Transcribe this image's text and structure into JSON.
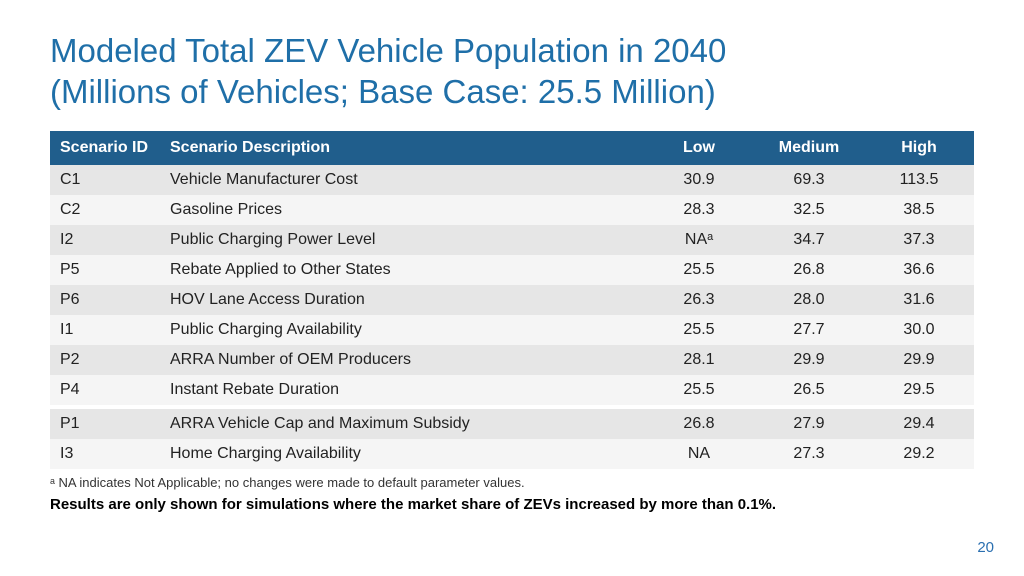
{
  "title_line1": "Modeled Total ZEV Vehicle Population in 2040",
  "title_line2": "(Millions of Vehicles; Base Case: 25.5 Million)",
  "columns": {
    "id": "Scenario ID",
    "desc": "Scenario Description",
    "low": "Low",
    "med": "Medium",
    "high": "High"
  },
  "rows": [
    {
      "id": "C1",
      "desc": "Vehicle Manufacturer Cost",
      "low": "30.9",
      "med": "69.3",
      "high": "113.5"
    },
    {
      "id": "C2",
      "desc": "Gasoline Prices",
      "low": "28.3",
      "med": "32.5",
      "high": "38.5"
    },
    {
      "id": "I2",
      "desc": "Public Charging Power Level",
      "low": "NAᵃ",
      "med": "34.7",
      "high": "37.3"
    },
    {
      "id": "P5",
      "desc": "Rebate Applied to Other States",
      "low": "25.5",
      "med": "26.8",
      "high": "36.6"
    },
    {
      "id": "P6",
      "desc": "HOV Lane Access Duration",
      "low": "26.3",
      "med": "28.0",
      "high": "31.6"
    },
    {
      "id": "I1",
      "desc": "Public Charging Availability",
      "low": "25.5",
      "med": "27.7",
      "high": "30.0"
    },
    {
      "id": "P2",
      "desc": "ARRA Number of OEM Producers",
      "low": "28.1",
      "med": "29.9",
      "high": "29.9"
    },
    {
      "id": "P4",
      "desc": "Instant Rebate Duration",
      "low": "25.5",
      "med": "26.5",
      "high": "29.5"
    },
    {
      "id": "P1",
      "desc": "ARRA Vehicle Cap and Maximum Subsidy",
      "low": "26.8",
      "med": "27.9",
      "high": "29.4"
    },
    {
      "id": "I3",
      "desc": "Home Charging Availability",
      "low": "NA",
      "med": "27.3",
      "high": "29.2"
    }
  ],
  "footnote": "ᵃ NA indicates Not Applicable; no changes were made to default parameter values.",
  "results_note": "Results are only shown for simulations where the market share of ZEVs increased by more than 0.1%.",
  "page_number": "20",
  "style": {
    "header_bg": "#205e8c",
    "header_fg": "#ffffff",
    "row_odd_bg": "#e6e6e6",
    "row_even_bg": "#f5f5f5",
    "title_color": "#1f6fa8",
    "pagenum_color": "#2a6fb0",
    "title_fontsize": 33,
    "table_fontsize": 16
  }
}
